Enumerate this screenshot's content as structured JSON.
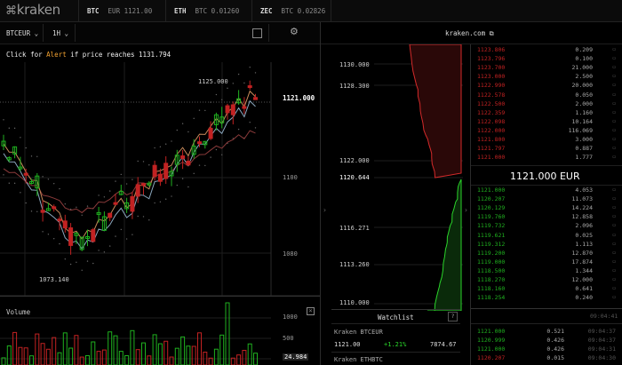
{
  "header": {
    "logo": "kraken",
    "tickers": [
      {
        "sym": "BTC",
        "pair": "EUR 1121.00"
      },
      {
        "sym": "ETH",
        "pair": "BTC 0.01260"
      },
      {
        "sym": "ZEC",
        "pair": "BTC 0.02826"
      }
    ]
  },
  "toolbar": {
    "pair": "BTCEUR",
    "interval": "1H"
  },
  "chart": {
    "alert_prefix": "Click for ",
    "alert_word": "Alert",
    "alert_suffix": " if price reaches 1131.794",
    "high_label": "1125.000",
    "low_label": "1073.140",
    "last_price": "1121.000",
    "axis": [
      "1100",
      "1080"
    ],
    "volume_title": "Volume",
    "volume_axis": [
      "1000",
      "500",
      "24.984"
    ]
  },
  "depth": {
    "site": "kraken.com",
    "axis": [
      "1130.000",
      "1128.300",
      "1122.000",
      "1120.644",
      "1116.271",
      "1113.260",
      "1110.000"
    ],
    "watchlist_title": "Watchlist",
    "watchlist": [
      {
        "name": "Kraken BTCEUR",
        "price": "1121.00",
        "change": "+1.21%",
        "vol": "7874.67"
      },
      {
        "name": "Kraken ETHBTC",
        "price": "",
        "change": "",
        "vol": ""
      }
    ]
  },
  "orderbook": {
    "asks": [
      {
        "p": "1123.806",
        "a": "0.209"
      },
      {
        "p": "1123.796",
        "a": "0.100"
      },
      {
        "p": "1123.700",
        "a": "21.000"
      },
      {
        "p": "1123.000",
        "a": "2.500"
      },
      {
        "p": "1122.990",
        "a": "20.000"
      },
      {
        "p": "1122.578",
        "a": "0.050"
      },
      {
        "p": "1122.500",
        "a": "2.000"
      },
      {
        "p": "1122.359",
        "a": "1.160"
      },
      {
        "p": "1122.098",
        "a": "10.164"
      },
      {
        "p": "1122.000",
        "a": "116.069"
      },
      {
        "p": "1121.800",
        "a": "3.000"
      },
      {
        "p": "1121.797",
        "a": "0.887"
      },
      {
        "p": "1121.000",
        "a": "1.777"
      }
    ],
    "mid": "1121.000 EUR",
    "bids": [
      {
        "p": "1121.000",
        "a": "4.053"
      },
      {
        "p": "1120.207",
        "a": "11.073"
      },
      {
        "p": "1120.129",
        "a": "14.224"
      },
      {
        "p": "1119.760",
        "a": "12.858"
      },
      {
        "p": "1119.732",
        "a": "2.096"
      },
      {
        "p": "1119.621",
        "a": "0.025"
      },
      {
        "p": "1119.312",
        "a": "1.113"
      },
      {
        "p": "1119.200",
        "a": "12.870"
      },
      {
        "p": "1119.000",
        "a": "17.874"
      },
      {
        "p": "1118.500",
        "a": "1.344"
      },
      {
        "p": "1118.270",
        "a": "12.000"
      },
      {
        "p": "1118.160",
        "a": "0.641"
      },
      {
        "p": "1118.254",
        "a": "0.240"
      }
    ],
    "trades_header_time": "09:04:41",
    "trades": [
      {
        "p": "1121.000",
        "a": "0.521",
        "t": "09:04:37"
      },
      {
        "p": "1120.999",
        "a": "0.426",
        "t": "09:04:37"
      },
      {
        "p": "1121.000",
        "a": "0.426",
        "t": "09:04:31"
      },
      {
        "p": "1120.207",
        "a": "0.015",
        "t": "09:04:30"
      }
    ]
  },
  "colors": {
    "up": "#1fb01f",
    "down": "#c22222",
    "accent": "#f0a030"
  }
}
